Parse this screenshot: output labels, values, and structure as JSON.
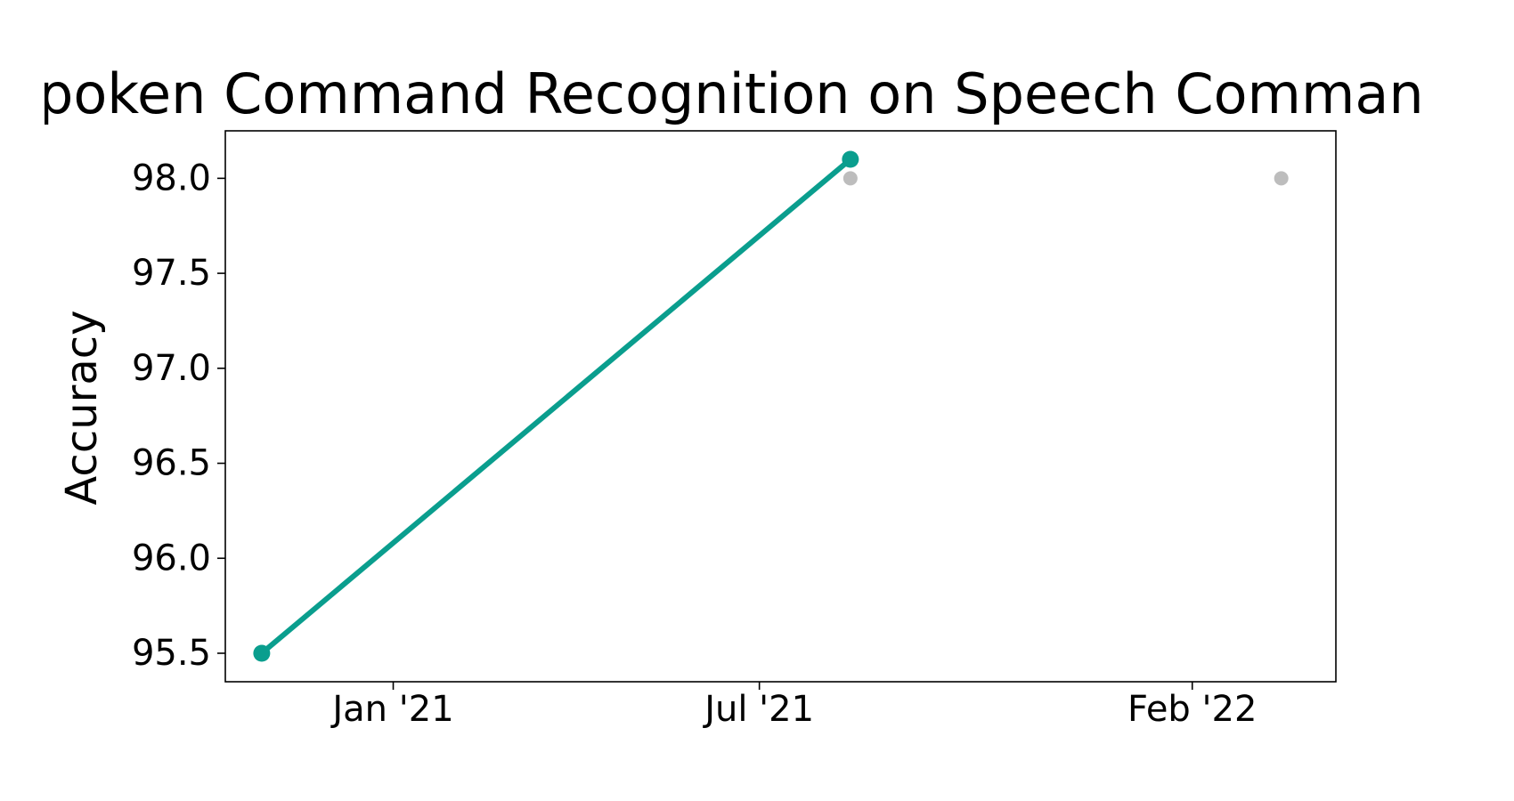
{
  "chart_data": {
    "type": "line",
    "title": "poken Command Recognition on Speech Comman",
    "xlabel": "",
    "ylabel": "Accuracy",
    "ylim": [
      95.35,
      98.25
    ],
    "xlim": [
      "2020-10-10",
      "2022-04-12"
    ],
    "x_ticks": [
      {
        "date": "2021-01-01",
        "label": "Jan '21"
      },
      {
        "date": "2021-07-01",
        "label": "Jul '21"
      },
      {
        "date": "2022-01-31",
        "label": "Feb '22"
      }
    ],
    "y_ticks": [
      95.5,
      96.0,
      96.5,
      97.0,
      97.5,
      98.0
    ],
    "y_tick_labels": [
      "95.5",
      "96.0",
      "96.5",
      "97.0",
      "97.5",
      "98.0"
    ],
    "grid": false,
    "series": [
      {
        "color": "#0a9e8e",
        "points": [
          {
            "x": "2020-10-28",
            "y": 95.5
          },
          {
            "x": "2021-08-15",
            "y": 98.1
          }
        ]
      },
      {
        "color": "#bdbdbd",
        "points": [
          {
            "x": "2021-08-15",
            "y": 98.0
          },
          {
            "x": "2022-03-16",
            "y": 98.0
          }
        ]
      }
    ]
  }
}
